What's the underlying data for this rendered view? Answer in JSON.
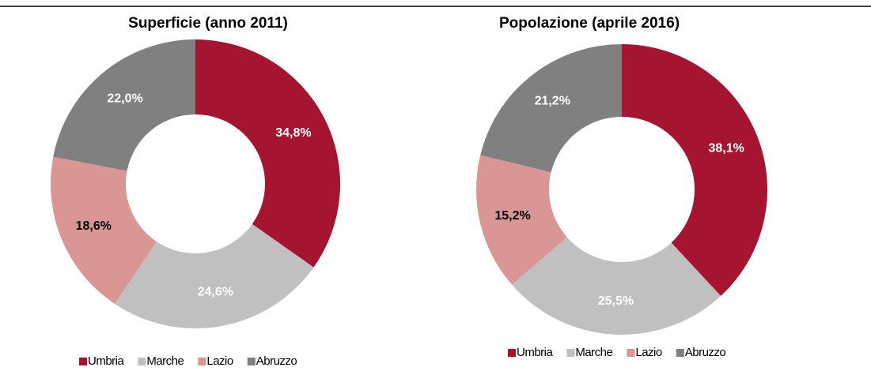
{
  "chart_data": [
    {
      "type": "pie",
      "title": "Superficie (anno 2011)",
      "categories": [
        "Umbria",
        "Marche",
        "Lazio",
        "Abruzzo"
      ],
      "values": [
        34.8,
        24.6,
        18.6,
        22.0
      ],
      "value_labels": [
        "34,8%",
        "24,6%",
        "18,6%",
        "22,0%"
      ],
      "colors": [
        "#a51431",
        "#c0c0c0",
        "#d99694",
        "#808080"
      ],
      "label_colors": [
        "#ffffff",
        "#ffffff",
        "#000000",
        "#ffffff"
      ]
    },
    {
      "type": "pie",
      "title": "Popolazione (aprile 2016)",
      "categories": [
        "Umbria",
        "Marche",
        "Lazio",
        "Abruzzo"
      ],
      "values": [
        38.1,
        25.5,
        15.2,
        21.2
      ],
      "value_labels": [
        "38,1%",
        "25,5%",
        "15,2%",
        "21,2%"
      ],
      "colors": [
        "#a51431",
        "#c0c0c0",
        "#d99694",
        "#808080"
      ],
      "label_colors": [
        "#ffffff",
        "#ffffff",
        "#000000",
        "#ffffff"
      ]
    }
  ]
}
